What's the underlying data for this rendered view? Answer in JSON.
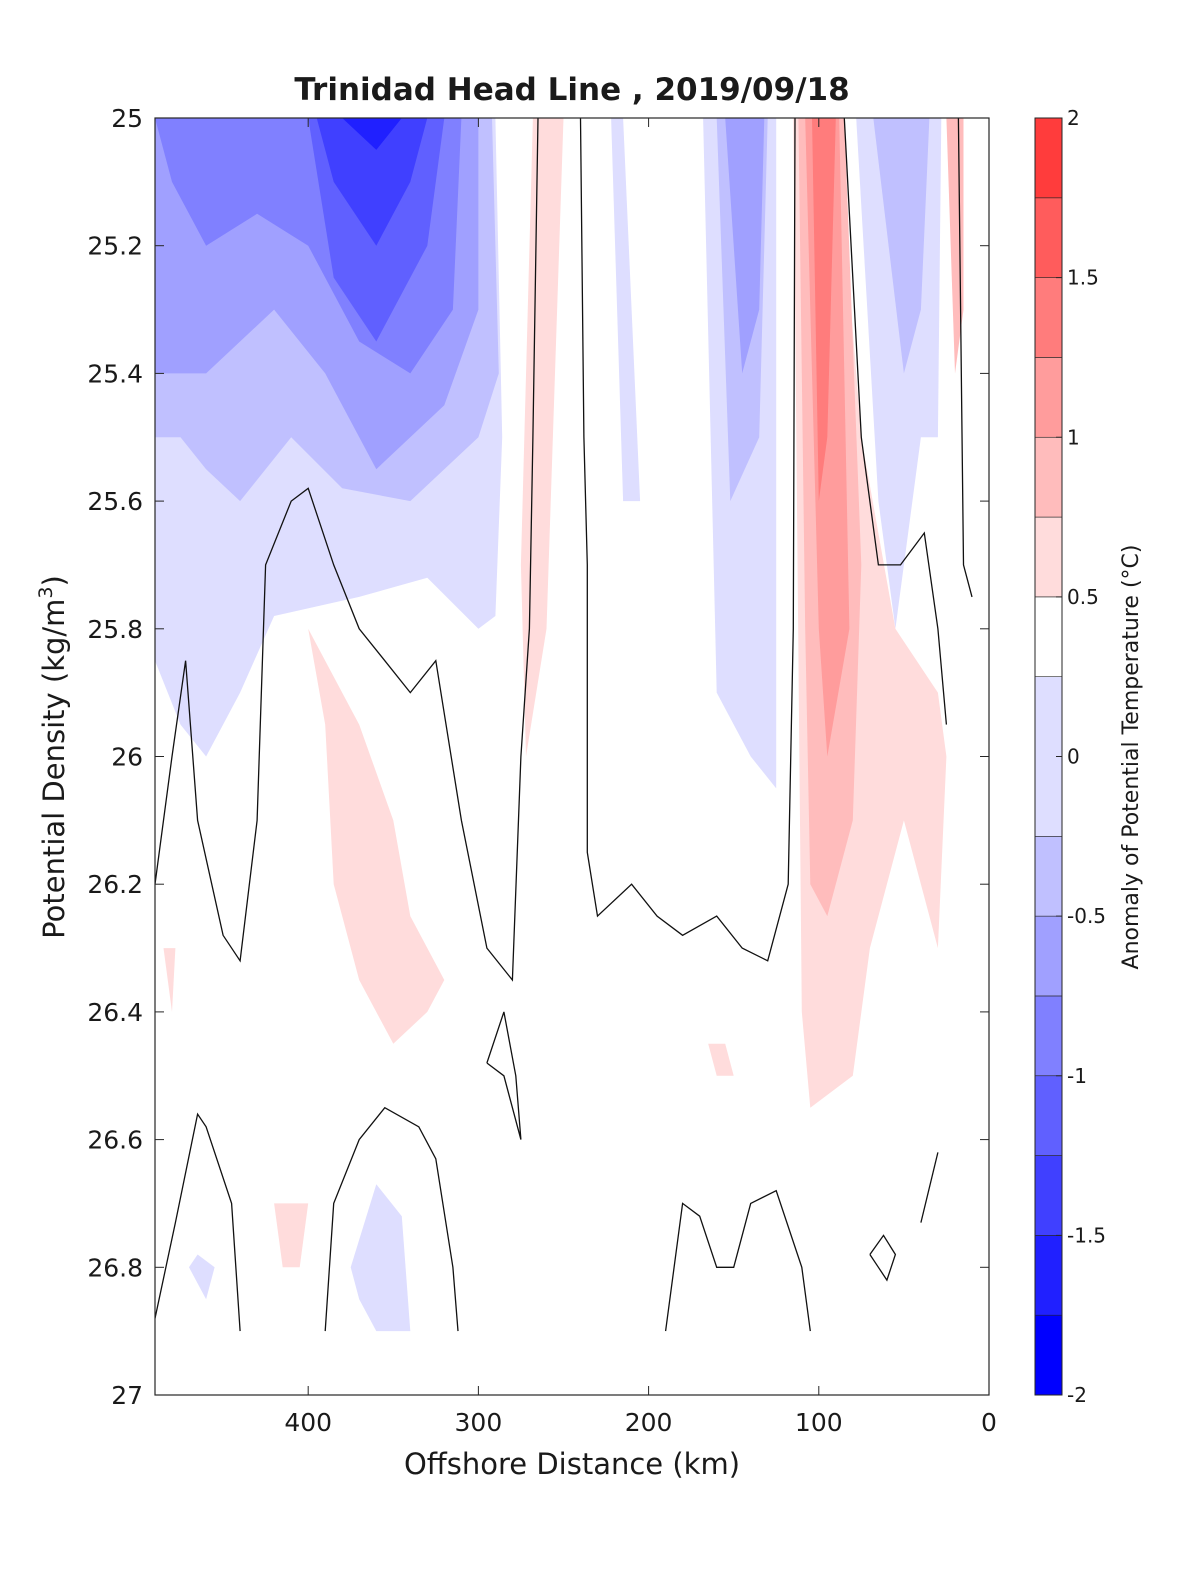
{
  "chart_data": {
    "type": "heatmap",
    "subtype": "filled-contour",
    "title": "Trinidad Head Line , 2019/09/18",
    "xlabel": "Offshore Distance (km)",
    "ylabel_main": "Potential Density (kg/m",
    "ylabel_sup": "3",
    "ylabel_close": ")",
    "colorbar_label": "Anomaly of Potential Temperature (°C)",
    "x_reversed": true,
    "y_reversed": true,
    "xlim": [
      0,
      490
    ],
    "ylim": [
      25,
      27
    ],
    "xticks": [
      400,
      300,
      200,
      100,
      0
    ],
    "xtick_labels": [
      "400",
      "300",
      "200",
      "100",
      "0"
    ],
    "yticks": [
      25,
      25.2,
      25.4,
      25.6,
      25.8,
      26,
      26.2,
      26.4,
      26.6,
      26.8,
      27
    ],
    "ytick_labels": [
      "25",
      "25.2",
      "25.4",
      "25.6",
      "25.8",
      "26",
      "26.2",
      "26.4",
      "26.6",
      "26.8",
      "27"
    ],
    "colorbar_ticks": [
      -2,
      -1.5,
      -1,
      -0.5,
      0,
      0.5,
      1,
      1.5,
      2
    ],
    "colorbar_tick_labels": [
      "-2",
      "-1.5",
      "-1",
      "-0.5",
      "0",
      "0.5",
      "1",
      "1.5",
      "2"
    ],
    "colorbar_levels": [
      -2,
      -1.75,
      -1.5,
      -1.25,
      -1,
      -0.75,
      -0.5,
      -0.25,
      0.25,
      0.5,
      0.75,
      1,
      1.25,
      1.5,
      1.75,
      2
    ],
    "colorbar_colors": [
      "#0000ff",
      "#2020ff",
      "#4040ff",
      "#6060ff",
      "#8080ff",
      "#a0a0ff",
      "#c0c0ff",
      "#dedeff",
      "#ffffff",
      "#ffdcdc",
      "#ffbcbc",
      "#ff9c9c",
      "#ff7c7c",
      "#ff5c5c",
      "#ff3c3c",
      "#ff1818"
    ],
    "regions": [
      {
        "level": -0.25,
        "color": "#dedeff",
        "points": [
          [
            490,
            25
          ],
          [
            290,
            25
          ],
          [
            286,
            25.5
          ],
          [
            290,
            25.78
          ],
          [
            300,
            25.8
          ],
          [
            330,
            25.72
          ],
          [
            370,
            25.75
          ],
          [
            420,
            25.78
          ],
          [
            440,
            25.9
          ],
          [
            460,
            26.0
          ],
          [
            475,
            25.95
          ],
          [
            490,
            25.85
          ]
        ]
      },
      {
        "level": -0.5,
        "color": "#c0c0ff",
        "points": [
          [
            490,
            25
          ],
          [
            292,
            25
          ],
          [
            288,
            25.4
          ],
          [
            300,
            25.5
          ],
          [
            340,
            25.6
          ],
          [
            380,
            25.58
          ],
          [
            410,
            25.5
          ],
          [
            440,
            25.6
          ],
          [
            460,
            25.55
          ],
          [
            475,
            25.5
          ],
          [
            490,
            25.5
          ]
        ]
      },
      {
        "level": -0.75,
        "color": "#a0a0ff",
        "points": [
          [
            490,
            25
          ],
          [
            300,
            25
          ],
          [
            300,
            25.3
          ],
          [
            320,
            25.45
          ],
          [
            360,
            25.55
          ],
          [
            390,
            25.4
          ],
          [
            420,
            25.3
          ],
          [
            460,
            25.4
          ],
          [
            490,
            25.4
          ]
        ]
      },
      {
        "level": -1,
        "color": "#8080ff",
        "points": [
          [
            490,
            25
          ],
          [
            310,
            25
          ],
          [
            315,
            25.3
          ],
          [
            340,
            25.4
          ],
          [
            370,
            25.35
          ],
          [
            400,
            25.2
          ],
          [
            430,
            25.15
          ],
          [
            460,
            25.2
          ],
          [
            480,
            25.1
          ],
          [
            490,
            25
          ]
        ]
      },
      {
        "level": -1.25,
        "color": "#6060ff",
        "points": [
          [
            460,
            25
          ],
          [
            320,
            25
          ],
          [
            330,
            25.2
          ],
          [
            360,
            25.35
          ],
          [
            385,
            25.25
          ],
          [
            400,
            25.0
          ]
        ]
      },
      {
        "level": -1.5,
        "color": "#4040ff",
        "points": [
          [
            395,
            25
          ],
          [
            330,
            25
          ],
          [
            340,
            25.1
          ],
          [
            360,
            25.2
          ],
          [
            385,
            25.1
          ]
        ]
      },
      {
        "level": -1.75,
        "color": "#2020ff",
        "points": [
          [
            380,
            25
          ],
          [
            345,
            25
          ],
          [
            360,
            25.05
          ]
        ]
      },
      {
        "level": -0.25,
        "color": "#dedeff",
        "points": [
          [
            215,
            25
          ],
          [
            210,
            25.3
          ],
          [
            205,
            25.6
          ],
          [
            215,
            25.6
          ],
          [
            222,
            25.0
          ]
        ]
      },
      {
        "level": -0.25,
        "color": "#dedeff",
        "points": [
          [
            168,
            25
          ],
          [
            160,
            25.9
          ],
          [
            140,
            26.0
          ],
          [
            125,
            26.05
          ],
          [
            125,
            25.0
          ]
        ]
      },
      {
        "level": -0.5,
        "color": "#c0c0ff",
        "points": [
          [
            160,
            25
          ],
          [
            152,
            25.6
          ],
          [
            135,
            25.5
          ],
          [
            130,
            25.0
          ]
        ]
      },
      {
        "level": -0.75,
        "color": "#a0a0ff",
        "points": [
          [
            155,
            25
          ],
          [
            145,
            25.4
          ],
          [
            135,
            25.3
          ],
          [
            132,
            25.0
          ]
        ]
      },
      {
        "level": -0.25,
        "color": "#dedeff",
        "points": [
          [
            78,
            25
          ],
          [
            65,
            25.6
          ],
          [
            55,
            25.8
          ],
          [
            40,
            25.5
          ],
          [
            30,
            25.5
          ],
          [
            28,
            25
          ],
          [
            58,
            25
          ]
        ]
      },
      {
        "level": -0.5,
        "color": "#c0c0ff",
        "points": [
          [
            68,
            25
          ],
          [
            50,
            25.4
          ],
          [
            40,
            25.3
          ],
          [
            35,
            25.0
          ]
        ]
      },
      {
        "level": 0.25,
        "color": "#ffdcdc",
        "points": [
          [
            268,
            25
          ],
          [
            275,
            25.7
          ],
          [
            272,
            26.0
          ],
          [
            260,
            25.8
          ],
          [
            250,
            25.0
          ]
        ]
      },
      {
        "level": 0.25,
        "color": "#ffdcdc",
        "points": [
          [
            115,
            25
          ],
          [
            110,
            26.4
          ],
          [
            105,
            26.55
          ],
          [
            80,
            26.5
          ],
          [
            70,
            26.3
          ],
          [
            50,
            26.1
          ],
          [
            30,
            26.3
          ],
          [
            25,
            26.0
          ],
          [
            30,
            25.9
          ],
          [
            55,
            25.8
          ],
          [
            75,
            25.5
          ],
          [
            90,
            25.0
          ]
        ]
      },
      {
        "level": 0.5,
        "color": "#ffbcbc",
        "points": [
          [
            112,
            25
          ],
          [
            108,
            25.8
          ],
          [
            105,
            26.2
          ],
          [
            95,
            26.25
          ],
          [
            80,
            26.1
          ],
          [
            75,
            25.7
          ],
          [
            85,
            25.0
          ]
        ]
      },
      {
        "level": 0.75,
        "color": "#ff9c9c",
        "points": [
          [
            108,
            25
          ],
          [
            100,
            25.8
          ],
          [
            95,
            26.0
          ],
          [
            82,
            25.8
          ],
          [
            88,
            25.0
          ]
        ]
      },
      {
        "level": 1,
        "color": "#ff7c7c",
        "points": [
          [
            104,
            25
          ],
          [
            100,
            25.6
          ],
          [
            95,
            25.5
          ],
          [
            90,
            25.0
          ]
        ]
      },
      {
        "level": 0.25,
        "color": "#ffdcdc",
        "points": [
          [
            400,
            25.8
          ],
          [
            390,
            25.95
          ],
          [
            385,
            26.2
          ],
          [
            370,
            26.35
          ],
          [
            350,
            26.45
          ],
          [
            330,
            26.4
          ],
          [
            320,
            26.35
          ],
          [
            340,
            26.25
          ],
          [
            350,
            26.1
          ],
          [
            370,
            25.95
          ],
          [
            390,
            25.85
          ]
        ]
      },
      {
        "level": 0.5,
        "color": "#ffbcbc",
        "points": [
          [
            25,
            25.0
          ],
          [
            20,
            25.4
          ],
          [
            15,
            25.3
          ],
          [
            15,
            25.0
          ]
        ]
      },
      {
        "level": -0.25,
        "color": "#dedeff",
        "points": [
          [
            470,
            26.8
          ],
          [
            460,
            26.85
          ],
          [
            455,
            26.8
          ],
          [
            465,
            26.78
          ]
        ]
      },
      {
        "level": -0.25,
        "color": "#dedeff",
        "points": [
          [
            375,
            26.8
          ],
          [
            370,
            26.85
          ],
          [
            360,
            26.9
          ],
          [
            340,
            26.9
          ],
          [
            345,
            26.72
          ],
          [
            360,
            26.67
          ]
        ]
      },
      {
        "level": 0.25,
        "color": "#ffdcdc",
        "points": [
          [
            420,
            26.7
          ],
          [
            415,
            26.8
          ],
          [
            405,
            26.8
          ],
          [
            400,
            26.7
          ]
        ]
      },
      {
        "level": 0.25,
        "color": "#ffdcdc",
        "points": [
          [
            165,
            26.45
          ],
          [
            160,
            26.5
          ],
          [
            150,
            26.5
          ],
          [
            155,
            26.45
          ]
        ]
      },
      {
        "level": 0.25,
        "color": "#ffdcdc",
        "points": [
          [
            485,
            26.3
          ],
          [
            480,
            26.4
          ],
          [
            478,
            26.3
          ]
        ]
      }
    ],
    "contours_zero": [
      [
        [
          490,
          26.2
        ],
        [
          480,
          26.0
        ],
        [
          472,
          25.85
        ],
        [
          465,
          26.1
        ],
        [
          450,
          26.28
        ],
        [
          440,
          26.32
        ],
        [
          430,
          26.1
        ],
        [
          425,
          25.7
        ],
        [
          410,
          25.6
        ],
        [
          400,
          25.58
        ],
        [
          385,
          25.7
        ],
        [
          370,
          25.8
        ],
        [
          355,
          25.85
        ],
        [
          340,
          25.9
        ],
        [
          325,
          25.85
        ],
        [
          310,
          26.1
        ],
        [
          295,
          26.3
        ],
        [
          280,
          26.35
        ],
        [
          275,
          26.0
        ],
        [
          270,
          25.8
        ],
        [
          268,
          25.5
        ],
        [
          265,
          25.0
        ]
      ],
      [
        [
          240,
          25.0
        ],
        [
          238,
          25.5
        ],
        [
          236,
          25.7
        ],
        [
          236,
          26.15
        ],
        [
          230,
          26.25
        ],
        [
          210,
          26.2
        ],
        [
          195,
          26.25
        ],
        [
          180,
          26.28
        ],
        [
          160,
          26.25
        ],
        [
          145,
          26.3
        ],
        [
          130,
          26.32
        ],
        [
          118,
          26.2
        ],
        [
          115,
          25.8
        ],
        [
          114,
          25.0
        ]
      ],
      [
        [
          85,
          25.0
        ],
        [
          75,
          25.5
        ],
        [
          65,
          25.7
        ],
        [
          52,
          25.7
        ],
        [
          38,
          25.65
        ],
        [
          30,
          25.8
        ],
        [
          25,
          25.95
        ]
      ],
      [
        [
          18,
          25.0
        ],
        [
          15,
          25.7
        ],
        [
          10,
          25.75
        ]
      ],
      [
        [
          490,
          26.88
        ],
        [
          478,
          26.73
        ],
        [
          465,
          26.56
        ],
        [
          460,
          26.58
        ],
        [
          445,
          26.7
        ],
        [
          440,
          26.9
        ]
      ],
      [
        [
          390,
          26.9
        ],
        [
          385,
          26.7
        ],
        [
          370,
          26.6
        ],
        [
          355,
          26.55
        ],
        [
          335,
          26.58
        ],
        [
          325,
          26.63
        ],
        [
          315,
          26.8
        ],
        [
          312,
          26.9
        ]
      ],
      [
        [
          295,
          26.48
        ],
        [
          285,
          26.4
        ],
        [
          278,
          26.5
        ],
        [
          275,
          26.6
        ],
        [
          285,
          26.5
        ],
        [
          295,
          26.48
        ]
      ],
      [
        [
          190,
          26.9
        ],
        [
          180,
          26.7
        ],
        [
          170,
          26.72
        ],
        [
          160,
          26.8
        ],
        [
          150,
          26.8
        ],
        [
          140,
          26.7
        ],
        [
          125,
          26.68
        ],
        [
          110,
          26.8
        ],
        [
          105,
          26.9
        ]
      ],
      [
        [
          70,
          26.78
        ],
        [
          65,
          26.8
        ],
        [
          60,
          26.82
        ],
        [
          55,
          26.78
        ],
        [
          62,
          26.75
        ],
        [
          70,
          26.78
        ]
      ],
      [
        [
          40,
          26.73
        ],
        [
          30,
          26.62
        ]
      ]
    ]
  }
}
